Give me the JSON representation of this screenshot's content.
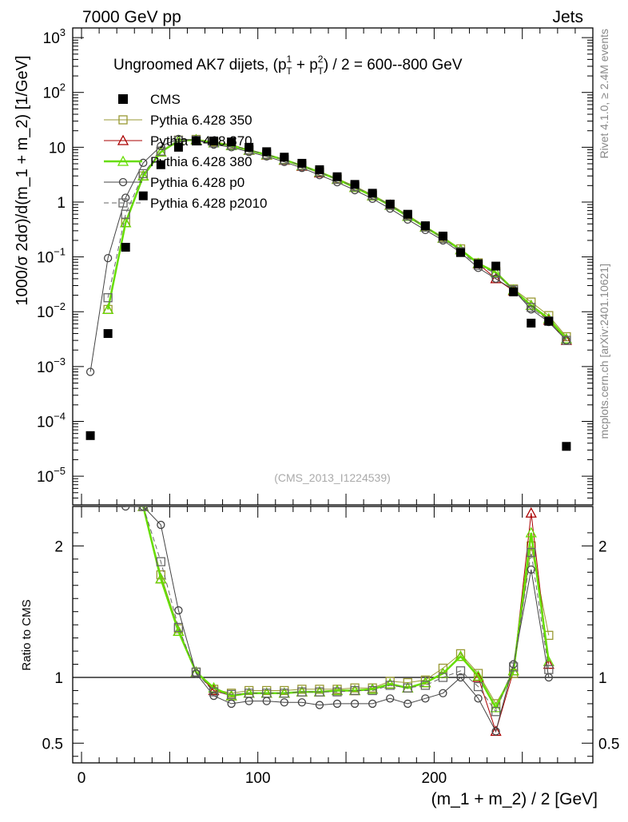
{
  "header": {
    "left": "7000 GeV pp",
    "right": "Jets",
    "side_right_1": "Rivet 4.1.0, ≥ 2.4M events",
    "side_right_2": "mcplots.cern.ch [arXiv:2401.10621]",
    "watermark": "(CMS_2013_I1224539)"
  },
  "chart_data": {
    "type": "line",
    "title": "Ungroomed AK7 dijets, (p_T^1 + p_T^2) / 2 = 600--800 GeV",
    "title_parts": {
      "pre": "Ungroomed AK7 dijets, (p",
      "sub": "T",
      "sup1": "1",
      "mid": " + p",
      "sup2": "2",
      "post": ") / 2 = 600--800 GeV"
    },
    "xlabel": "(m_1 + m_2) / 2 [GeV]",
    "ylabel": "1000/σ   2dσ)/d(m_1 + m_2) [1/GeV]",
    "ratio_ylabel": "Ratio to CMS",
    "xlim": [
      -5,
      290
    ],
    "ylim_log": [
      3e-06,
      1500
    ],
    "ratio_ylim": [
      0.35,
      2.3
    ],
    "x_ticks": [
      "0",
      "100",
      "200"
    ],
    "y_tick_labels": [
      {
        "base": "10",
        "exp": "3"
      },
      {
        "base": "10",
        "exp": "2"
      },
      {
        "base": "10",
        "exp": ""
      },
      {
        "base": "1",
        "exp": ""
      },
      {
        "base": "10",
        "exp": "−1"
      },
      {
        "base": "10",
        "exp": "−2"
      },
      {
        "base": "10",
        "exp": "−3"
      },
      {
        "base": "10",
        "exp": "−4"
      },
      {
        "base": "10",
        "exp": "−5"
      }
    ],
    "ratio_ticks": [
      "2",
      "1",
      "0.5"
    ],
    "x": [
      5,
      15,
      25,
      35,
      45,
      55,
      65,
      75,
      85,
      95,
      105,
      115,
      125,
      135,
      145,
      155,
      165,
      175,
      185,
      195,
      205,
      215,
      225,
      235,
      245,
      255,
      265,
      275
    ],
    "data": {
      "name": "CMS",
      "values": [
        5.5e-05,
        0.004,
        0.15,
        1.3,
        4.8,
        10,
        13,
        13,
        12.5,
        10,
        8.3,
        6.6,
        5.1,
        3.9,
        2.9,
        2.1,
        1.45,
        0.92,
        0.6,
        0.37,
        0.24,
        0.12,
        0.075,
        0.068,
        0.023,
        0.0062,
        0.0067,
        3.5e-05
      ]
    },
    "series": [
      {
        "name": "Pythia 6.428 350",
        "color": "#999933",
        "marker": "square",
        "dash": "",
        "width": 1,
        "values": [
          null,
          0.011,
          0.42,
          3.0,
          8.4,
          13.5,
          13.9,
          12.6,
          11.2,
          9.0,
          7.5,
          6.0,
          4.7,
          3.6,
          2.7,
          1.95,
          1.35,
          0.91,
          0.58,
          0.36,
          0.23,
          0.14,
          0.078,
          0.054,
          0.026,
          0.015,
          0.0085,
          0.0035
        ]
      },
      {
        "name": "Pythia 6.428 370",
        "color": "#aa0000",
        "marker": "triangle",
        "dash": "",
        "width": 1,
        "values": [
          null,
          0.011,
          0.42,
          3.0,
          8.2,
          13.2,
          13.7,
          12.0,
          10.7,
          8.8,
          7.2,
          5.8,
          4.5,
          3.4,
          2.6,
          1.85,
          1.3,
          0.88,
          0.55,
          0.35,
          0.22,
          0.135,
          0.075,
          0.04,
          0.024,
          0.013,
          0.007,
          0.003
        ]
      },
      {
        "name": "Pythia 6.428 380",
        "color": "#66dd00",
        "marker": "triangle",
        "dash": "",
        "width": 2.5,
        "values": [
          null,
          0.011,
          0.42,
          3.0,
          8.2,
          13.2,
          13.7,
          12.0,
          10.7,
          8.8,
          7.3,
          5.9,
          4.6,
          3.5,
          2.6,
          1.85,
          1.3,
          0.87,
          0.55,
          0.35,
          0.22,
          0.135,
          0.076,
          0.052,
          0.025,
          0.013,
          0.0075,
          0.0032
        ]
      },
      {
        "name": "Pythia 6.428 p0",
        "color": "#444444",
        "marker": "circle",
        "dash": "",
        "width": 1,
        "values": [
          0.0008,
          0.095,
          1.2,
          5.2,
          10.5,
          14.2,
          13.4,
          11.2,
          10.0,
          8.2,
          6.8,
          5.4,
          4.2,
          3.1,
          2.3,
          1.65,
          1.15,
          0.76,
          0.48,
          0.31,
          0.2,
          0.12,
          0.063,
          0.04,
          0.025,
          0.011,
          0.0065,
          0.003
        ]
      },
      {
        "name": "Pythia 6.428 p2010",
        "color": "#666666",
        "marker": "square",
        "dash": "6,4",
        "width": 1,
        "values": [
          null,
          0.018,
          0.6,
          3.3,
          8.5,
          13.3,
          13.5,
          12.0,
          10.9,
          8.9,
          7.4,
          5.9,
          4.6,
          3.5,
          2.6,
          1.9,
          1.33,
          0.88,
          0.56,
          0.35,
          0.22,
          0.125,
          0.07,
          0.05,
          0.025,
          0.012,
          0.0068,
          0.003
        ]
      }
    ],
    "ratios": [
      [
        null,
        null,
        null,
        2.3,
        1.78,
        1.37,
        1.04,
        0.91,
        0.88,
        0.9,
        0.9,
        0.9,
        0.91,
        0.91,
        0.91,
        0.92,
        0.92,
        0.97,
        0.96,
        0.98,
        1.07,
        1.18,
        1.03,
        0.8,
        1.03,
        2.0,
        1.32,
        null
      ],
      [
        null,
        null,
        null,
        2.3,
        1.75,
        1.35,
        1.04,
        0.9,
        0.86,
        0.88,
        0.88,
        0.88,
        0.89,
        0.89,
        0.9,
        0.9,
        0.91,
        0.95,
        0.92,
        0.96,
        1.03,
        1.16,
        1.0,
        0.59,
        1.05,
        2.25,
        1.1,
        null
      ],
      [
        null,
        null,
        null,
        2.3,
        1.75,
        1.35,
        1.04,
        0.92,
        0.86,
        0.88,
        0.88,
        0.88,
        0.89,
        0.89,
        0.9,
        0.9,
        0.91,
        0.95,
        0.92,
        0.96,
        1.03,
        1.16,
        1.01,
        0.77,
        1.05,
        2.1,
        1.12,
        null
      ],
      [
        null,
        null,
        2.3,
        2.3,
        2.16,
        1.51,
        1.03,
        0.86,
        0.8,
        0.82,
        0.82,
        0.81,
        0.81,
        0.79,
        0.8,
        0.8,
        0.8,
        0.84,
        0.8,
        0.84,
        0.88,
        1.0,
        0.84,
        0.59,
        1.1,
        1.82,
        1.0,
        null
      ],
      [
        null,
        null,
        null,
        2.3,
        1.88,
        1.38,
        1.04,
        0.89,
        0.87,
        0.88,
        0.88,
        0.88,
        0.89,
        0.89,
        0.89,
        0.9,
        0.9,
        0.94,
        0.92,
        0.94,
        1.0,
        1.05,
        0.93,
        0.74,
        1.08,
        1.95,
        1.06,
        null
      ]
    ]
  }
}
